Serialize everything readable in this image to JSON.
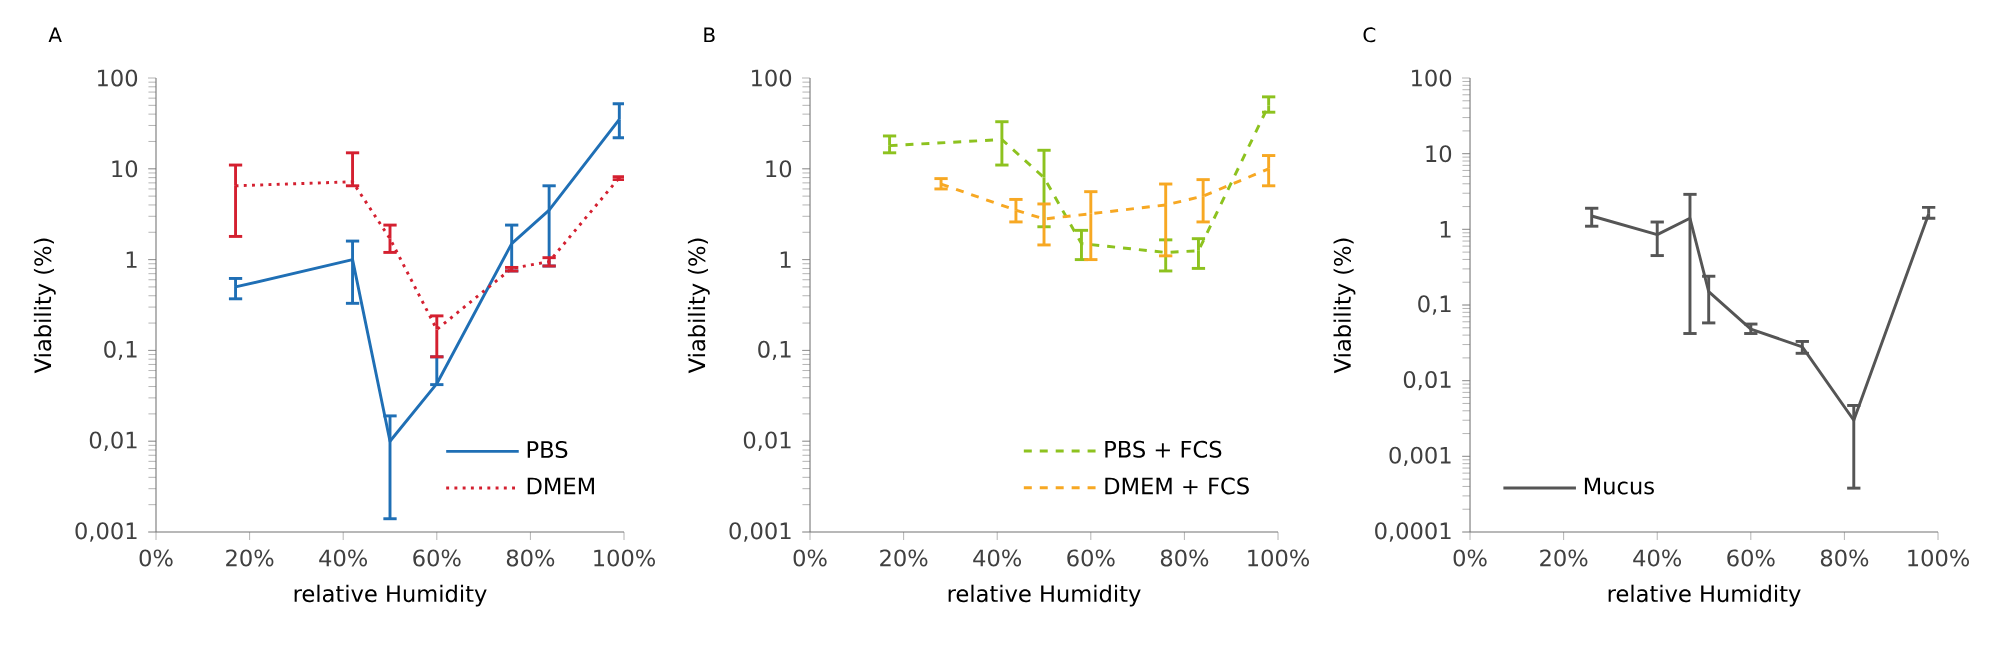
{
  "chart_data": [
    {
      "type": "line",
      "title": "A",
      "xlabel": "relative Humidity",
      "ylabel": "Viability  (%)",
      "log": "y",
      "legend": "bottom right",
      "marker": "none",
      "grid": false,
      "xlim": [
        0,
        100
      ],
      "xticks": [
        {
          "value": 0,
          "label": "0%"
        },
        {
          "value": 20,
          "label": "20%"
        },
        {
          "value": 40,
          "label": "40%"
        },
        {
          "value": 60,
          "label": "60%"
        },
        {
          "value": 80,
          "label": "80%"
        },
        {
          "value": 100,
          "label": "100%"
        }
      ],
      "ylim": [
        0.001,
        100
      ],
      "yticks": [
        {
          "value": 0.001,
          "label": "0,001"
        },
        {
          "value": 0.01,
          "label": "0,01"
        },
        {
          "value": 0.1,
          "label": "0,1"
        },
        1,
        10,
        100
      ],
      "series": [
        {
          "name": "PBS",
          "color": "#1f6fb5",
          "line_style": "solid",
          "x": [
            17,
            42,
            50,
            60,
            76,
            84,
            99
          ],
          "values": [
            0.5,
            1.0,
            0.01,
            0.043,
            1.5,
            3.5,
            35
          ],
          "errors": [
            [
              0.37,
              0.62
            ],
            [
              0.33,
              1.6
            ],
            [
              0.0014,
              0.019
            ],
            [
              0.042,
              0.085
            ],
            [
              0.75,
              2.4
            ],
            [
              0.85,
              6.5
            ],
            [
              22,
              52
            ]
          ]
        },
        {
          "name": "DMEM",
          "color": "#d42030",
          "line_style": "dotted",
          "x": [
            17,
            42,
            50,
            60,
            76,
            84,
            99
          ],
          "values": [
            6.5,
            7.2,
            1.7,
            0.17,
            0.8,
            0.95,
            8
          ],
          "errors": [
            [
              1.8,
              11
            ],
            [
              6.5,
              15
            ],
            [
              1.2,
              2.4
            ],
            [
              0.085,
              0.24
            ],
            [
              0.75,
              0.82
            ],
            [
              0.85,
              1.05
            ],
            [
              7.6,
              8.2
            ]
          ]
        }
      ]
    },
    {
      "type": "line",
      "title": "B",
      "xlabel": "relative Humidity",
      "ylabel": "Viability  (%)",
      "log": "y",
      "legend": "bottom right",
      "marker": "none",
      "grid": false,
      "xlim": [
        0,
        100
      ],
      "xticks": [
        {
          "value": 0,
          "label": "0%"
        },
        {
          "value": 20,
          "label": "20%"
        },
        {
          "value": 40,
          "label": "40%"
        },
        {
          "value": 60,
          "label": "60%"
        },
        {
          "value": 80,
          "label": "80%"
        },
        {
          "value": 100,
          "label": "100%"
        }
      ],
      "ylim": [
        0.001,
        100
      ],
      "yticks": [
        {
          "value": 0.001,
          "label": "0,001"
        },
        {
          "value": 0.01,
          "label": "0,01"
        },
        {
          "value": 0.1,
          "label": "0,1"
        },
        1,
        10,
        100
      ],
      "series": [
        {
          "name": "PBS + FCS",
          "color": "#8dc21f",
          "line_style": "dashed",
          "x": [
            17,
            41,
            50,
            58,
            76,
            83,
            98
          ],
          "values": [
            18,
            21,
            8,
            1.5,
            1.2,
            1.25,
            50
          ],
          "errors": [
            [
              15,
              23
            ],
            [
              11,
              33
            ],
            [
              2.3,
              16
            ],
            [
              1.0,
              2.1
            ],
            [
              0.75,
              1.65
            ],
            [
              0.8,
              1.7
            ],
            [
              42,
              62
            ]
          ]
        },
        {
          "name": "DMEM + FCS",
          "color": "#f7a823",
          "line_style": "dashed",
          "x": [
            28,
            44,
            50,
            60,
            76,
            84,
            98
          ],
          "values": [
            6.8,
            3.5,
            2.8,
            3.2,
            4,
            5,
            10
          ],
          "errors": [
            [
              6,
              7.8
            ],
            [
              2.6,
              4.6
            ],
            [
              1.45,
              4.1
            ],
            [
              1.0,
              5.6
            ],
            [
              1.1,
              6.8
            ],
            [
              2.6,
              7.6
            ],
            [
              6.5,
              14
            ]
          ]
        }
      ]
    },
    {
      "type": "line",
      "title": "C",
      "xlabel": "relative Humidity",
      "ylabel": "Viability  (%)",
      "log": "y",
      "legend": "bottom left",
      "marker": "none",
      "grid": false,
      "xlim": [
        0,
        100
      ],
      "xticks": [
        {
          "value": 0,
          "label": "0%"
        },
        {
          "value": 20,
          "label": "20%"
        },
        {
          "value": 40,
          "label": "40%"
        },
        {
          "value": 60,
          "label": "60%"
        },
        {
          "value": 80,
          "label": "80%"
        },
        {
          "value": 100,
          "label": "100%"
        }
      ],
      "ylim": [
        0.0001,
        100
      ],
      "yticks": [
        {
          "value": 0.0001,
          "label": "0,0001"
        },
        {
          "value": 0.001,
          "label": "0,001"
        },
        {
          "value": 0.01,
          "label": "0,01"
        },
        {
          "value": 0.1,
          "label": "0,1"
        },
        1,
        10,
        100
      ],
      "series": [
        {
          "name": "Mucus",
          "color": "#555555",
          "line_style": "solid",
          "x": [
            26,
            40,
            47,
            51,
            60,
            71,
            82,
            98
          ],
          "values": [
            1.5,
            0.85,
            1.4,
            0.15,
            0.048,
            0.028,
            0.003,
            1.6
          ],
          "errors": [
            [
              1.1,
              1.9
            ],
            [
              0.45,
              1.25
            ],
            [
              0.042,
              2.9
            ],
            [
              0.058,
              0.24
            ],
            [
              0.042,
              0.056
            ],
            [
              0.023,
              0.033
            ],
            [
              0.00038,
              0.0047
            ],
            [
              1.4,
              1.95
            ]
          ]
        }
      ]
    }
  ]
}
